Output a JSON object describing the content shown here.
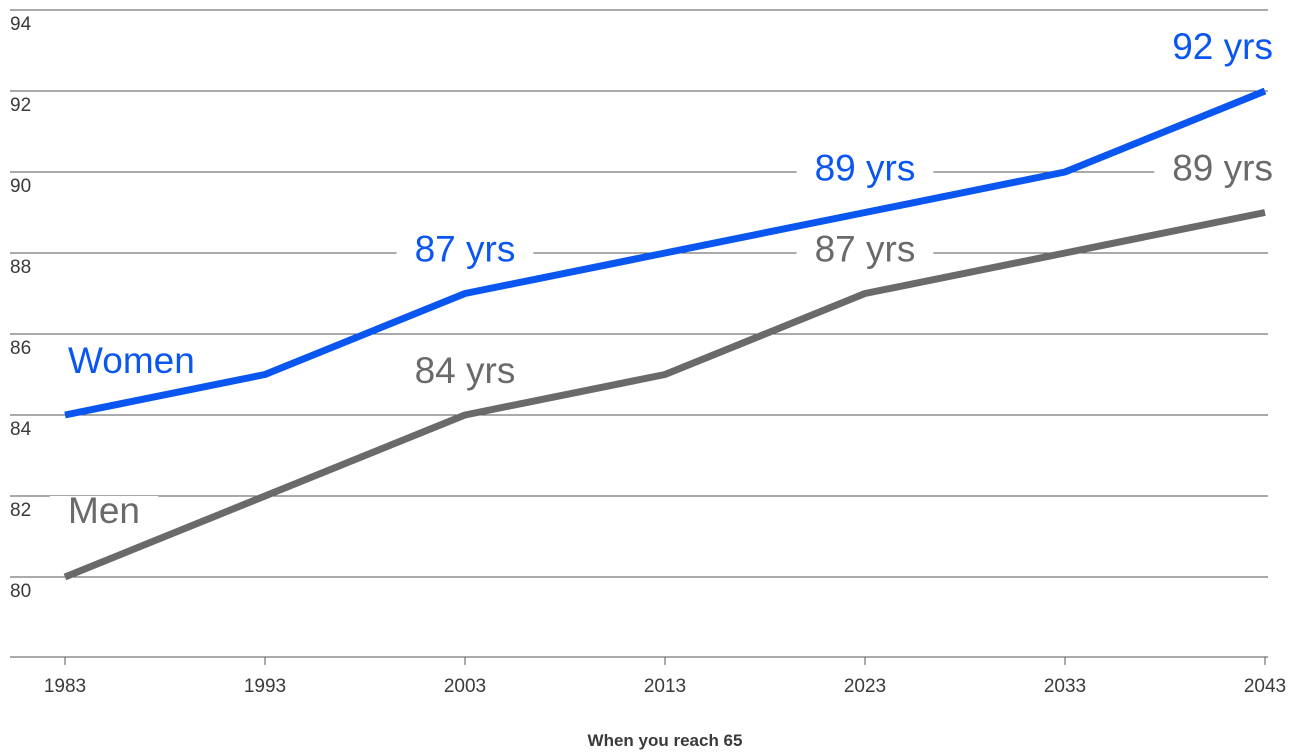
{
  "chart_data": {
    "type": "line",
    "x": [
      1983,
      1993,
      2003,
      2013,
      2023,
      2033,
      2043
    ],
    "series": [
      {
        "name": "Women",
        "color": "#0a56f0",
        "values": [
          84,
          85,
          87,
          88,
          89,
          90,
          92
        ]
      },
      {
        "name": "Men",
        "color": "#6a6a6a",
        "values": [
          80,
          82,
          84,
          85,
          87,
          88,
          89
        ]
      }
    ],
    "xlabel": "When you reach 65",
    "ylabel": "",
    "xlim": [
      1983,
      2043
    ],
    "ylim": [
      80,
      94
    ],
    "yticks": [
      80,
      82,
      84,
      86,
      88,
      90,
      92,
      94
    ],
    "xticks": [
      1983,
      1993,
      2003,
      2013,
      2023,
      2033,
      2043
    ],
    "grid": true,
    "annotations": [
      {
        "series": "Women",
        "x": 2003,
        "text": "87 yrs"
      },
      {
        "series": "Women",
        "x": 2023,
        "text": "89 yrs"
      },
      {
        "series": "Women",
        "x": 2043,
        "text": "92 yrs"
      },
      {
        "series": "Men",
        "x": 2003,
        "text": "84 yrs"
      },
      {
        "series": "Men",
        "x": 2023,
        "text": "87 yrs"
      },
      {
        "series": "Men",
        "x": 2043,
        "text": "89 yrs"
      }
    ]
  }
}
